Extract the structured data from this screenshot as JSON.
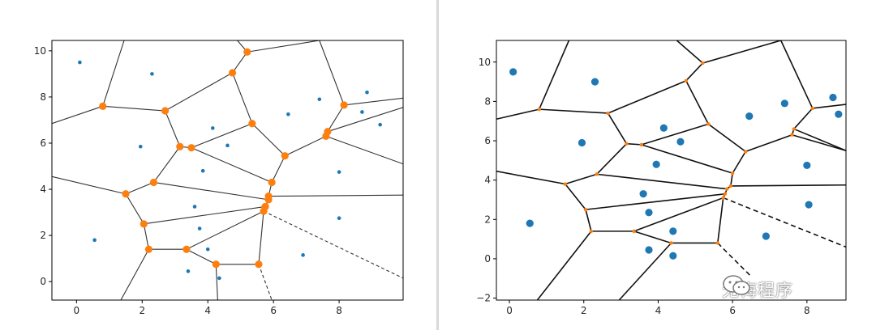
{
  "chart_data": [
    {
      "type": "scatter",
      "title": "",
      "xlabel": "",
      "ylabel": "",
      "xlim": [
        -0.75,
        9.95
      ],
      "ylim": [
        -0.8,
        10.45
      ],
      "xticks": [
        0,
        2,
        4,
        6,
        8
      ],
      "yticks": [
        0,
        2,
        4,
        6,
        8,
        10
      ],
      "grid": false,
      "point_color": "#1f77b4",
      "vertex_color": "#ff7f0e",
      "edge_color": "#333333",
      "points": [
        [
          0.1,
          9.5
        ],
        [
          2.3,
          9.0
        ],
        [
          0.55,
          1.8
        ],
        [
          1.95,
          5.85
        ],
        [
          3.75,
          2.3
        ],
        [
          3.6,
          3.25
        ],
        [
          3.4,
          0.45
        ],
        [
          4.0,
          1.4
        ],
        [
          4.35,
          0.15
        ],
        [
          4.15,
          6.65
        ],
        [
          4.6,
          5.9
        ],
        [
          3.85,
          4.8
        ],
        [
          6.45,
          7.25
        ],
        [
          7.4,
          7.9
        ],
        [
          8.85,
          8.2
        ],
        [
          8.7,
          7.35
        ],
        [
          9.25,
          6.8
        ],
        [
          8.0,
          4.75
        ],
        [
          8.0,
          2.75
        ],
        [
          6.9,
          1.15
        ]
      ],
      "vertices": [
        [
          0.8,
          7.6
        ],
        [
          2.7,
          7.4
        ],
        [
          5.2,
          9.95
        ],
        [
          4.75,
          9.05
        ],
        [
          3.15,
          5.85
        ],
        [
          3.5,
          5.8
        ],
        [
          5.35,
          6.85
        ],
        [
          6.35,
          5.45
        ],
        [
          8.15,
          7.65
        ],
        [
          7.65,
          6.5
        ],
        [
          7.6,
          6.3
        ],
        [
          2.35,
          4.3
        ],
        [
          1.5,
          3.8
        ],
        [
          5.95,
          4.3
        ],
        [
          5.85,
          3.7
        ],
        [
          5.85,
          3.55
        ],
        [
          5.75,
          3.25
        ],
        [
          5.7,
          3.05
        ],
        [
          2.05,
          2.5
        ],
        [
          2.2,
          1.4
        ],
        [
          3.35,
          1.4
        ],
        [
          4.25,
          0.75
        ],
        [
          5.55,
          0.75
        ]
      ],
      "edges": [
        [
          [
            -0.75,
            6.85
          ],
          [
            0.8,
            7.6
          ]
        ],
        [
          [
            0.8,
            7.6
          ],
          [
            1.45,
            10.45
          ]
        ],
        [
          [
            0.8,
            7.6
          ],
          [
            2.7,
            7.4
          ]
        ],
        [
          [
            2.7,
            7.4
          ],
          [
            4.75,
            9.05
          ]
        ],
        [
          [
            4.75,
            9.05
          ],
          [
            5.2,
            9.95
          ]
        ],
        [
          [
            5.2,
            9.95
          ],
          [
            4.9,
            10.45
          ]
        ],
        [
          [
            5.2,
            9.95
          ],
          [
            7.4,
            10.45
          ]
        ],
        [
          [
            4.75,
            9.05
          ],
          [
            5.35,
            6.85
          ]
        ],
        [
          [
            2.7,
            7.4
          ],
          [
            3.15,
            5.85
          ]
        ],
        [
          [
            3.15,
            5.85
          ],
          [
            3.5,
            5.8
          ]
        ],
        [
          [
            3.5,
            5.8
          ],
          [
            5.35,
            6.85
          ]
        ],
        [
          [
            5.35,
            6.85
          ],
          [
            6.35,
            5.45
          ]
        ],
        [
          [
            6.35,
            5.45
          ],
          [
            7.6,
            6.3
          ]
        ],
        [
          [
            7.6,
            6.3
          ],
          [
            7.65,
            6.5
          ]
        ],
        [
          [
            7.65,
            6.5
          ],
          [
            8.15,
            7.65
          ]
        ],
        [
          [
            8.15,
            7.65
          ],
          [
            9.95,
            7.95
          ]
        ],
        [
          [
            8.15,
            7.65
          ],
          [
            7.4,
            10.45
          ]
        ],
        [
          [
            7.65,
            6.5
          ],
          [
            9.95,
            7.55
          ]
        ],
        [
          [
            7.6,
            6.3
          ],
          [
            9.95,
            5.1
          ]
        ],
        [
          [
            6.35,
            5.45
          ],
          [
            5.95,
            4.3
          ]
        ],
        [
          [
            5.95,
            4.3
          ],
          [
            5.85,
            3.7
          ]
        ],
        [
          [
            5.85,
            3.7
          ],
          [
            9.95,
            3.75
          ]
        ],
        [
          [
            5.85,
            3.7
          ],
          [
            5.85,
            3.55
          ]
        ],
        [
          [
            5.85,
            3.55
          ],
          [
            5.75,
            3.25
          ]
        ],
        [
          [
            5.75,
            3.25
          ],
          [
            5.7,
            3.05
          ]
        ],
        [
          [
            5.7,
            3.05
          ],
          [
            5.55,
            0.75
          ]
        ],
        [
          [
            5.55,
            0.75
          ],
          [
            4.25,
            0.75
          ]
        ],
        [
          [
            4.25,
            0.75
          ],
          [
            3.35,
            1.4
          ]
        ],
        [
          [
            3.35,
            1.4
          ],
          [
            2.2,
            1.4
          ]
        ],
        [
          [
            2.2,
            1.4
          ],
          [
            2.05,
            2.5
          ]
        ],
        [
          [
            2.05,
            2.5
          ],
          [
            1.5,
            3.8
          ]
        ],
        [
          [
            1.5,
            3.8
          ],
          [
            2.35,
            4.3
          ]
        ],
        [
          [
            2.35,
            4.3
          ],
          [
            3.15,
            5.85
          ]
        ],
        [
          [
            3.5,
            5.8
          ],
          [
            5.95,
            4.3
          ]
        ],
        [
          [
            2.35,
            4.3
          ],
          [
            5.85,
            3.55
          ]
        ],
        [
          [
            2.05,
            2.5
          ],
          [
            5.75,
            3.25
          ]
        ],
        [
          [
            3.35,
            1.4
          ],
          [
            5.7,
            3.05
          ]
        ],
        [
          [
            1.5,
            3.8
          ],
          [
            -0.75,
            4.55
          ]
        ],
        [
          [
            2.2,
            1.4
          ],
          [
            1.35,
            -0.8
          ]
        ],
        [
          [
            4.25,
            0.75
          ],
          [
            4.3,
            -0.8
          ]
        ]
      ],
      "dashed_edges": [
        [
          [
            5.7,
            3.05
          ],
          [
            9.95,
            0.15
          ]
        ],
        [
          [
            5.55,
            0.75
          ],
          [
            5.95,
            -0.8
          ]
        ]
      ]
    },
    {
      "type": "scatter",
      "title": "",
      "xlabel": "",
      "ylabel": "",
      "xlim": [
        -0.35,
        9.05
      ],
      "ylim": [
        -2.1,
        11.1
      ],
      "xticks": [
        0,
        2,
        4,
        6,
        8
      ],
      "yticks": [
        -2,
        0,
        2,
        4,
        6,
        8,
        10
      ],
      "grid": false,
      "point_color": "#1f77b4",
      "vertex_color": "#ff7f0e",
      "edge_color": "#111111",
      "points": [
        [
          0.1,
          9.5
        ],
        [
          2.3,
          9.0
        ],
        [
          0.55,
          1.8
        ],
        [
          1.95,
          5.9
        ],
        [
          3.75,
          2.35
        ],
        [
          3.6,
          3.3
        ],
        [
          3.75,
          0.45
        ],
        [
          4.4,
          1.4
        ],
        [
          4.4,
          0.15
        ],
        [
          4.15,
          6.65
        ],
        [
          4.6,
          5.95
        ],
        [
          3.95,
          4.8
        ],
        [
          6.45,
          7.25
        ],
        [
          7.4,
          7.9
        ],
        [
          8.7,
          8.2
        ],
        [
          8.85,
          7.35
        ],
        [
          9.25,
          6.8
        ],
        [
          8.0,
          4.75
        ],
        [
          8.05,
          2.75
        ],
        [
          6.9,
          1.15
        ]
      ],
      "vertices": [
        [
          0.8,
          7.6
        ],
        [
          2.65,
          7.4
        ],
        [
          5.2,
          9.95
        ],
        [
          4.75,
          9.05
        ],
        [
          3.15,
          5.85
        ],
        [
          3.55,
          5.8
        ],
        [
          5.35,
          6.85
        ],
        [
          6.35,
          5.45
        ],
        [
          8.15,
          7.65
        ],
        [
          7.65,
          6.6
        ],
        [
          7.6,
          6.3
        ],
        [
          2.35,
          4.3
        ],
        [
          1.5,
          3.8
        ],
        [
          6.0,
          4.35
        ],
        [
          5.95,
          3.7
        ],
        [
          5.85,
          3.55
        ],
        [
          5.8,
          3.3
        ],
        [
          5.75,
          3.1
        ],
        [
          2.05,
          2.5
        ],
        [
          2.2,
          1.4
        ],
        [
          3.35,
          1.4
        ],
        [
          4.35,
          0.8
        ],
        [
          5.6,
          0.8
        ]
      ],
      "edges": [
        [
          [
            -0.35,
            7.1
          ],
          [
            0.8,
            7.6
          ]
        ],
        [
          [
            0.8,
            7.6
          ],
          [
            1.6,
            11.1
          ]
        ],
        [
          [
            0.8,
            7.6
          ],
          [
            2.65,
            7.4
          ]
        ],
        [
          [
            2.65,
            7.4
          ],
          [
            4.75,
            9.05
          ]
        ],
        [
          [
            4.75,
            9.05
          ],
          [
            5.2,
            9.95
          ]
        ],
        [
          [
            5.2,
            9.95
          ],
          [
            4.5,
            11.1
          ]
        ],
        [
          [
            5.2,
            9.95
          ],
          [
            7.3,
            11.1
          ]
        ],
        [
          [
            4.75,
            9.05
          ],
          [
            5.35,
            6.85
          ]
        ],
        [
          [
            2.65,
            7.4
          ],
          [
            3.15,
            5.85
          ]
        ],
        [
          [
            3.15,
            5.85
          ],
          [
            3.55,
            5.8
          ]
        ],
        [
          [
            3.55,
            5.8
          ],
          [
            5.35,
            6.85
          ]
        ],
        [
          [
            5.35,
            6.85
          ],
          [
            6.35,
            5.45
          ]
        ],
        [
          [
            6.35,
            5.45
          ],
          [
            7.6,
            6.3
          ]
        ],
        [
          [
            7.6,
            6.3
          ],
          [
            7.65,
            6.6
          ]
        ],
        [
          [
            7.65,
            6.6
          ],
          [
            8.15,
            7.65
          ]
        ],
        [
          [
            8.15,
            7.65
          ],
          [
            9.05,
            7.85
          ]
        ],
        [
          [
            8.15,
            7.65
          ],
          [
            7.3,
            11.1
          ]
        ],
        [
          [
            7.65,
            6.6
          ],
          [
            9.05,
            5.5
          ]
        ],
        [
          [
            7.6,
            6.3
          ],
          [
            9.05,
            5.5
          ]
        ],
        [
          [
            6.35,
            5.45
          ],
          [
            6.0,
            4.35
          ]
        ],
        [
          [
            6.0,
            4.35
          ],
          [
            5.95,
            3.7
          ]
        ],
        [
          [
            5.95,
            3.7
          ],
          [
            9.05,
            3.75
          ]
        ],
        [
          [
            5.95,
            3.7
          ],
          [
            5.85,
            3.55
          ]
        ],
        [
          [
            5.85,
            3.55
          ],
          [
            5.8,
            3.3
          ]
        ],
        [
          [
            5.8,
            3.3
          ],
          [
            5.75,
            3.1
          ]
        ],
        [
          [
            5.75,
            3.1
          ],
          [
            5.6,
            0.8
          ]
        ],
        [
          [
            5.6,
            0.8
          ],
          [
            4.35,
            0.8
          ]
        ],
        [
          [
            4.35,
            0.8
          ],
          [
            3.35,
            1.4
          ]
        ],
        [
          [
            3.35,
            1.4
          ],
          [
            2.2,
            1.4
          ]
        ],
        [
          [
            2.2,
            1.4
          ],
          [
            2.05,
            2.5
          ]
        ],
        [
          [
            2.05,
            2.5
          ],
          [
            1.5,
            3.8
          ]
        ],
        [
          [
            1.5,
            3.8
          ],
          [
            2.35,
            4.3
          ]
        ],
        [
          [
            2.35,
            4.3
          ],
          [
            3.15,
            5.85
          ]
        ],
        [
          [
            3.55,
            5.8
          ],
          [
            6.0,
            4.35
          ]
        ],
        [
          [
            2.35,
            4.3
          ],
          [
            5.85,
            3.55
          ]
        ],
        [
          [
            2.05,
            2.5
          ],
          [
            5.8,
            3.3
          ]
        ],
        [
          [
            3.35,
            1.4
          ],
          [
            5.75,
            3.1
          ]
        ],
        [
          [
            1.5,
            3.8
          ],
          [
            -0.35,
            4.45
          ]
        ],
        [
          [
            2.2,
            1.4
          ],
          [
            0.75,
            -2.1
          ]
        ],
        [
          [
            4.35,
            0.8
          ],
          [
            2.95,
            -2.1
          ]
        ]
      ],
      "dashed_edges": [
        [
          [
            5.75,
            3.1
          ],
          [
            9.05,
            0.6
          ]
        ],
        [
          [
            5.6,
            0.8
          ],
          [
            6.5,
            -0.9
          ]
        ]
      ]
    }
  ],
  "watermark": {
    "text": "无悔程序",
    "icon": "wechat-icon"
  }
}
